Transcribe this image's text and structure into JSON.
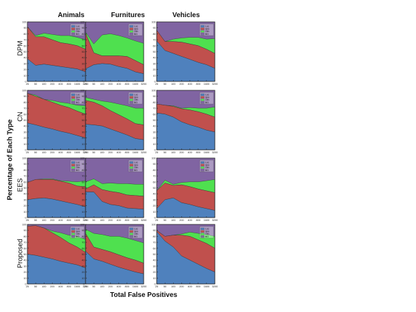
{
  "figure": {
    "columns": [
      "Animals",
      "Furnitures",
      "Vehicles"
    ],
    "rows": [
      "DPM",
      "CN",
      "EES",
      "Proposed"
    ],
    "ylabel": "Percentage of Each Type",
    "xlabel": "Total False Positives"
  },
  "colors": {
    "Loc": "#4f81bd",
    "Sim": "#c0504d",
    "Oth": "#4fe04f",
    "BG": "#8064a2"
  },
  "chart_data": {
    "type": "area",
    "stacked": true,
    "x_ticks": [
      "25",
      "50",
      "100",
      "200",
      "400",
      "800",
      "1600",
      "3200"
    ],
    "ylim": [
      0,
      100
    ],
    "y_ticks": [
      "0",
      "10",
      "20",
      "30",
      "40",
      "50",
      "60",
      "70",
      "80",
      "90",
      "100"
    ],
    "legend": [
      "Loc",
      "Sim",
      "Oth",
      "BG"
    ],
    "legend_position": "top-right",
    "panels": [
      {
        "row": "DPM",
        "column": "Animals",
        "series": {
          "Loc": [
            38,
            27,
            29,
            27,
            25,
            23,
            21,
            16
          ],
          "Sim": [
            54,
            48,
            46,
            43,
            40,
            40,
            39,
            38
          ],
          "Oth": [
            0,
            2,
            6,
            9,
            12,
            14,
            14,
            16
          ]
        }
      },
      {
        "row": "DPM",
        "column": "Furnitures",
        "series": {
          "Loc": [
            21,
            28,
            30,
            29,
            25,
            22,
            16,
            13
          ],
          "Sim": [
            60,
            20,
            13,
            14,
            18,
            20,
            19,
            15
          ],
          "Oth": [
            2,
            15,
            35,
            37,
            34,
            31,
            33,
            36
          ]
        }
      },
      {
        "row": "DPM",
        "column": "Vehicles",
        "series": {
          "Loc": [
            68,
            52,
            47,
            42,
            37,
            32,
            28,
            22
          ],
          "Sim": [
            18,
            15,
            20,
            24,
            26,
            28,
            26,
            25
          ],
          "Oth": [
            0,
            0,
            4,
            7,
            11,
            14,
            17,
            25
          ]
        }
      },
      {
        "row": "CN",
        "column": "Animals",
        "series": {
          "Loc": [
            45,
            42,
            38,
            35,
            31,
            28,
            24,
            20
          ],
          "Sim": [
            50,
            48,
            47,
            45,
            44,
            43,
            41,
            40
          ],
          "Oth": [
            0,
            2,
            0,
            3,
            5,
            7,
            10,
            14
          ]
        }
      },
      {
        "row": "CN",
        "column": "Furnitures",
        "series": {
          "Loc": [
            43,
            42,
            40,
            35,
            30,
            25,
            19,
            17
          ],
          "Sim": [
            40,
            38,
            34,
            31,
            29,
            27,
            25,
            25
          ],
          "Oth": [
            5,
            5,
            8,
            14,
            18,
            22,
            26,
            28
          ]
        }
      },
      {
        "row": "CN",
        "column": "Vehicles",
        "series": {
          "Loc": [
            62,
            60,
            55,
            47,
            42,
            38,
            33,
            30
          ],
          "Sim": [
            15,
            15,
            18,
            22,
            25,
            26,
            27,
            25
          ],
          "Oth": [
            0,
            0,
            1,
            1,
            4,
            6,
            10,
            17
          ]
        }
      },
      {
        "row": "EES",
        "column": "Animals",
        "series": {
          "Loc": [
            30,
            32,
            33,
            31,
            28,
            25,
            22,
            18
          ],
          "Sim": [
            29,
            32,
            31,
            33,
            33,
            33,
            31,
            34
          ],
          "Oth": [
            0,
            0,
            1,
            1,
            1,
            3,
            7,
            10
          ]
        }
      },
      {
        "row": "EES",
        "column": "Furnitures",
        "series": {
          "Loc": [
            43,
            43,
            27,
            22,
            20,
            16,
            15,
            14
          ],
          "Sim": [
            5,
            12,
            20,
            22,
            22,
            22,
            22,
            22
          ],
          "Oth": [
            12,
            10,
            10,
            14,
            15,
            19,
            19,
            20
          ]
        }
      },
      {
        "row": "EES",
        "column": "Vehicles",
        "series": {
          "Loc": [
            15,
            30,
            33,
            25,
            22,
            18,
            15,
            12
          ],
          "Sim": [
            30,
            28,
            21,
            30,
            30,
            30,
            30,
            30
          ],
          "Oth": [
            0,
            5,
            2,
            4,
            8,
            12,
            17,
            22
          ]
        }
      },
      {
        "row": "Proposed",
        "column": "Animals",
        "series": {
          "Loc": [
            50,
            48,
            45,
            42,
            38,
            35,
            32,
            27
          ],
          "Sim": [
            47,
            50,
            49,
            44,
            40,
            34,
            30,
            26
          ],
          "Oth": [
            0,
            0,
            0,
            3,
            8,
            13,
            18,
            22
          ]
        }
      },
      {
        "row": "Proposed",
        "column": "Furnitures",
        "series": {
          "Loc": [
            55,
            42,
            38,
            33,
            28,
            24,
            20,
            17
          ],
          "Sim": [
            30,
            20,
            20,
            21,
            21,
            20,
            20,
            18
          ],
          "Oth": [
            7,
            23,
            25,
            26,
            31,
            33,
            33,
            34
          ]
        }
      },
      {
        "row": "Proposed",
        "column": "Vehicles",
        "series": {
          "Loc": [
            88,
            72,
            62,
            47,
            40,
            33,
            26,
            20
          ],
          "Sim": [
            2,
            8,
            20,
            35,
            40,
            41,
            42,
            40
          ],
          "Oth": [
            0,
            0,
            0,
            2,
            7,
            11,
            15,
            20
          ]
        }
      }
    ]
  }
}
